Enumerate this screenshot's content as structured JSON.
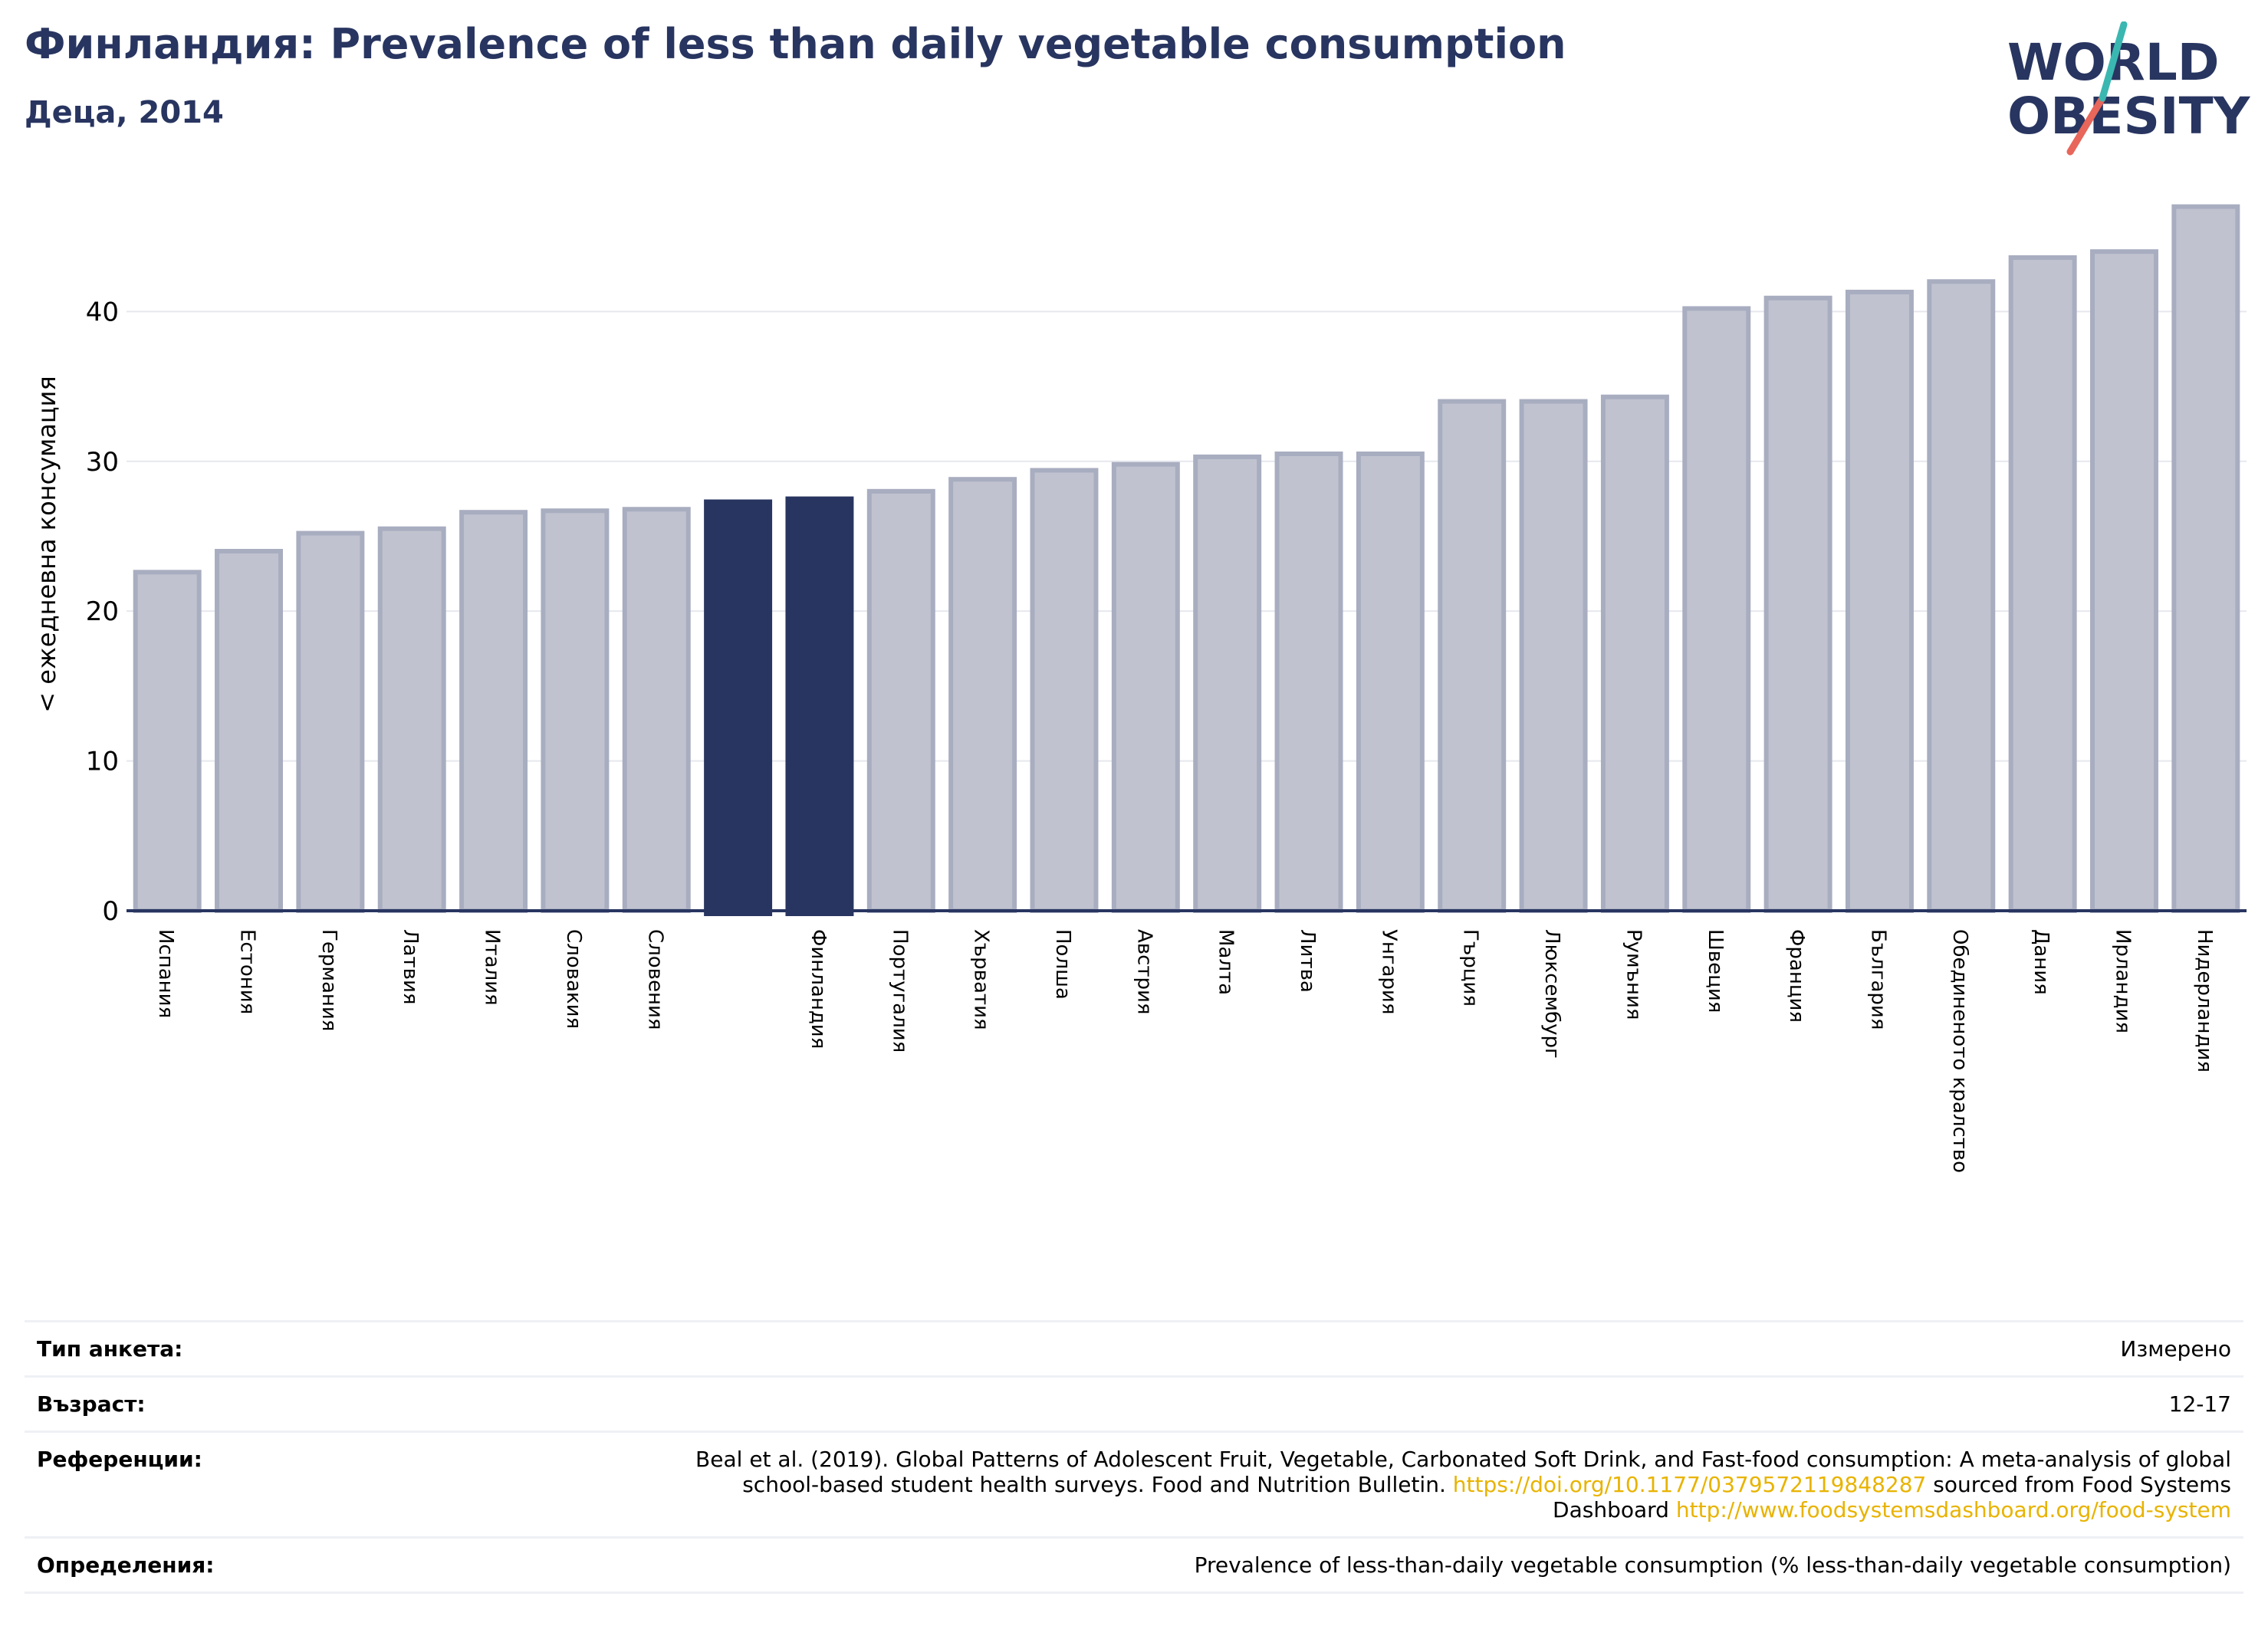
{
  "header": {
    "title": "Финландия: Prevalence of less than daily vegetable consumption",
    "subtitle": "Деца, 2014"
  },
  "logo": {
    "line1": "WORLD",
    "line2": "OBESITY"
  },
  "chart_data": {
    "type": "bar",
    "ylabel": "< ежедневна консумация",
    "ylim": [
      0,
      48
    ],
    "yticks": [
      0,
      10,
      20,
      30,
      40
    ],
    "grid": true,
    "categories": [
      "Испания",
      "Естония",
      "Германия",
      "Латвия",
      "Италия",
      "Словакия",
      "Словения",
      "",
      "Финландия",
      "Португалия",
      "Хърватия",
      "Полша",
      "Австрия",
      "Малта",
      "Литва",
      "Унгария",
      "Гърция",
      "Люксембург",
      "Румъния",
      "Швеция",
      "Франция",
      "България",
      "Обединеното кралство",
      "Дания",
      "Ирландия",
      "Нидерландия"
    ],
    "values": [
      22.6,
      24.0,
      25.2,
      25.5,
      26.6,
      26.7,
      26.8,
      27.3,
      27.5,
      28.0,
      28.8,
      29.4,
      29.8,
      30.3,
      30.5,
      30.5,
      34.0,
      34.0,
      34.3,
      40.2,
      40.9,
      41.3,
      42.0,
      43.6,
      44.0,
      47.0
    ],
    "highlight_indices": [
      7,
      8
    ],
    "colors": {
      "bar": "#c0c3cf",
      "bar_edge": "#a8adc0",
      "highlight": "#283560",
      "axis": "#283560",
      "grid": "#e6e8ee"
    }
  },
  "meta": {
    "survey_type_label": "Тип анкета:",
    "survey_type_value": "Измерено",
    "age_label": "Възраст:",
    "age_value": "12-17",
    "references_label": "Референции:",
    "references_text_1": "Beal et al. (2019). Global Patterns of Adolescent Fruit, Vegetable, Carbonated Soft Drink, and Fast-food consumption: A meta-analysis of global school-based student health surveys. Food and Nutrition Bulletin.",
    "references_link_1": "https://doi.org/10.1177/0379572119848287",
    "references_text_2": "sourced from Food Systems Dashboard",
    "references_link_2": "http://www.foodsystemsdashboard.org/food-system",
    "definitions_label": "Определения:",
    "definitions_value": "Prevalence of less-than-daily vegetable consumption (% less-than-daily vegetable consumption)"
  }
}
